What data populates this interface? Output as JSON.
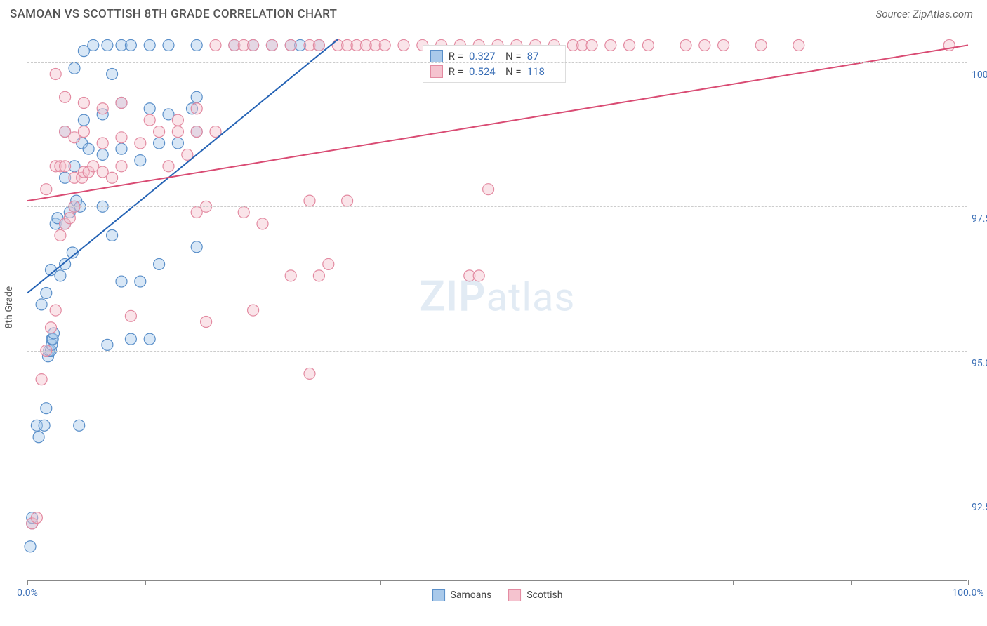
{
  "header": {
    "title": "SAMOAN VS SCOTTISH 8TH GRADE CORRELATION CHART",
    "source": "Source: ZipAtlas.com"
  },
  "chart": {
    "type": "scatter",
    "y_axis_title": "8th Grade",
    "background_color": "#ffffff",
    "grid_color": "#cccccc",
    "axis_color": "#888888",
    "label_color": "#3b6fb6",
    "x_range": [
      0,
      100
    ],
    "y_range": [
      91.0,
      100.5
    ],
    "x_ticks": [
      0,
      12.5,
      25,
      37.5,
      50,
      62.5,
      75,
      87.5,
      100
    ],
    "x_tick_labels": {
      "0": "0.0%",
      "100": "100.0%"
    },
    "y_gridlines": [
      92.5,
      95.0,
      97.5,
      100.0
    ],
    "y_tick_labels": {
      "92.5": "92.5%",
      "95.0": "95.0%",
      "97.5": "97.5%",
      "100.0": "100.0%"
    },
    "watermark": {
      "zip": "ZIP",
      "atlas": "atlas"
    },
    "marker_radius": 8,
    "marker_opacity": 0.45,
    "line_width": 2,
    "series": [
      {
        "name": "Samoans",
        "fill": "#a9c9ea",
        "stroke": "#5a8fc9",
        "line_color": "#2563b5",
        "R": "0.327",
        "N": "87",
        "trend": {
          "x1": 0,
          "y1": 96.0,
          "x2": 33,
          "y2": 100.4
        },
        "points": [
          [
            0.3,
            91.6
          ],
          [
            0.5,
            92.0
          ],
          [
            0.5,
            92.1
          ],
          [
            1.2,
            93.5
          ],
          [
            1.0,
            93.7
          ],
          [
            1.8,
            93.7
          ],
          [
            5.5,
            93.7
          ],
          [
            2.0,
            94.0
          ],
          [
            2.2,
            94.9
          ],
          [
            2.3,
            95.0
          ],
          [
            2.5,
            95.0
          ],
          [
            2.6,
            95.1
          ],
          [
            2.6,
            95.2
          ],
          [
            2.7,
            95.2
          ],
          [
            2.8,
            95.3
          ],
          [
            8.5,
            95.1
          ],
          [
            11.0,
            95.2
          ],
          [
            13.0,
            95.2
          ],
          [
            1.5,
            95.8
          ],
          [
            2.0,
            96.0
          ],
          [
            2.5,
            96.4
          ],
          [
            3.5,
            96.3
          ],
          [
            4.0,
            96.5
          ],
          [
            4.8,
            96.7
          ],
          [
            10.0,
            96.2
          ],
          [
            12.0,
            96.2
          ],
          [
            14.0,
            96.5
          ],
          [
            18.0,
            96.8
          ],
          [
            3.0,
            97.2
          ],
          [
            3.2,
            97.3
          ],
          [
            4.0,
            97.2
          ],
          [
            4.5,
            97.4
          ],
          [
            5.0,
            97.5
          ],
          [
            5.2,
            97.6
          ],
          [
            5.6,
            97.5
          ],
          [
            8.0,
            97.5
          ],
          [
            9.0,
            97.0
          ],
          [
            4.0,
            98.0
          ],
          [
            5.0,
            98.2
          ],
          [
            5.8,
            98.6
          ],
          [
            6.5,
            98.5
          ],
          [
            8.0,
            98.4
          ],
          [
            10.0,
            98.5
          ],
          [
            12.0,
            98.3
          ],
          [
            14.0,
            98.6
          ],
          [
            16.0,
            98.6
          ],
          [
            18.0,
            98.8
          ],
          [
            4.0,
            98.8
          ],
          [
            6.0,
            99.0
          ],
          [
            8.0,
            99.1
          ],
          [
            9.0,
            99.8
          ],
          [
            10.0,
            99.3
          ],
          [
            13.0,
            99.2
          ],
          [
            15.0,
            99.1
          ],
          [
            17.5,
            99.2
          ],
          [
            18.0,
            99.4
          ],
          [
            5.0,
            99.9
          ],
          [
            6.0,
            100.2
          ],
          [
            7.0,
            100.3
          ],
          [
            8.5,
            100.3
          ],
          [
            10.0,
            100.3
          ],
          [
            11.0,
            100.3
          ],
          [
            13.0,
            100.3
          ],
          [
            15.0,
            100.3
          ],
          [
            18.0,
            100.3
          ],
          [
            22.0,
            100.3
          ],
          [
            24.0,
            100.3
          ],
          [
            26.0,
            100.3
          ],
          [
            28.0,
            100.3
          ],
          [
            29.0,
            100.3
          ],
          [
            31.0,
            100.3
          ]
        ]
      },
      {
        "name": "Scottish",
        "fill": "#f5c3cf",
        "stroke": "#e38aa1",
        "line_color": "#d94b73",
        "R": "0.524",
        "N": "118",
        "trend": {
          "x1": 0,
          "y1": 97.6,
          "x2": 100,
          "y2": 100.3
        },
        "points": [
          [
            0.5,
            92.0
          ],
          [
            1.0,
            92.1
          ],
          [
            1.5,
            94.5
          ],
          [
            30.0,
            94.6
          ],
          [
            2.0,
            95.0
          ],
          [
            2.5,
            95.4
          ],
          [
            3.0,
            95.7
          ],
          [
            11.0,
            95.6
          ],
          [
            19.0,
            95.5
          ],
          [
            24.0,
            95.7
          ],
          [
            28.0,
            96.3
          ],
          [
            31.0,
            96.3
          ],
          [
            47.0,
            96.3
          ],
          [
            48.0,
            96.3
          ],
          [
            32.0,
            96.5
          ],
          [
            3.5,
            97.0
          ],
          [
            4.0,
            97.2
          ],
          [
            4.5,
            97.3
          ],
          [
            5.0,
            97.5
          ],
          [
            18.0,
            97.4
          ],
          [
            19.0,
            97.5
          ],
          [
            23.0,
            97.4
          ],
          [
            25.0,
            97.2
          ],
          [
            30.0,
            97.6
          ],
          [
            34.0,
            97.6
          ],
          [
            49.0,
            97.8
          ],
          [
            3.0,
            98.2
          ],
          [
            3.5,
            98.2
          ],
          [
            4.0,
            98.2
          ],
          [
            5.0,
            98.0
          ],
          [
            5.8,
            98.0
          ],
          [
            6.0,
            98.1
          ],
          [
            6.5,
            98.1
          ],
          [
            7.0,
            98.2
          ],
          [
            8.0,
            98.1
          ],
          [
            9.0,
            98.0
          ],
          [
            10.0,
            98.2
          ],
          [
            15.0,
            98.2
          ],
          [
            17.0,
            98.4
          ],
          [
            20.0,
            98.8
          ],
          [
            4.0,
            98.8
          ],
          [
            5.0,
            98.7
          ],
          [
            6.0,
            98.8
          ],
          [
            8.0,
            98.6
          ],
          [
            10.0,
            98.7
          ],
          [
            12.0,
            98.6
          ],
          [
            14.0,
            98.8
          ],
          [
            16.0,
            98.8
          ],
          [
            18.0,
            98.8
          ],
          [
            2.0,
            97.8
          ],
          [
            4.0,
            99.4
          ],
          [
            6.0,
            99.3
          ],
          [
            8.0,
            99.2
          ],
          [
            10.0,
            99.3
          ],
          [
            13.0,
            99.0
          ],
          [
            16.0,
            99.0
          ],
          [
            18.0,
            99.2
          ],
          [
            3.0,
            99.8
          ],
          [
            20.0,
            100.3
          ],
          [
            22.0,
            100.3
          ],
          [
            23.0,
            100.3
          ],
          [
            24.0,
            100.3
          ],
          [
            26.0,
            100.3
          ],
          [
            28.0,
            100.3
          ],
          [
            30.0,
            100.3
          ],
          [
            31.0,
            100.3
          ],
          [
            33.0,
            100.3
          ],
          [
            34.0,
            100.3
          ],
          [
            35.0,
            100.3
          ],
          [
            36.0,
            100.3
          ],
          [
            37.0,
            100.3
          ],
          [
            38.0,
            100.3
          ],
          [
            40.0,
            100.3
          ],
          [
            42.0,
            100.3
          ],
          [
            44.0,
            100.3
          ],
          [
            46.0,
            100.3
          ],
          [
            48.0,
            100.3
          ],
          [
            50.0,
            100.3
          ],
          [
            52.0,
            100.3
          ],
          [
            54.0,
            100.3
          ],
          [
            56.0,
            100.3
          ],
          [
            58.0,
            100.3
          ],
          [
            59.0,
            100.3
          ],
          [
            60.0,
            100.3
          ],
          [
            62.0,
            100.3
          ],
          [
            64.0,
            100.3
          ],
          [
            66.0,
            100.3
          ],
          [
            70.0,
            100.3
          ],
          [
            72.0,
            100.3
          ],
          [
            74.0,
            100.3
          ],
          [
            78.0,
            100.3
          ],
          [
            82.0,
            100.3
          ],
          [
            98.0,
            100.3
          ]
        ]
      }
    ],
    "legend_items": [
      {
        "label": "Samoans",
        "fill": "#a9c9ea",
        "stroke": "#5a8fc9"
      },
      {
        "label": "Scottish",
        "fill": "#f5c3cf",
        "stroke": "#e38aa1"
      }
    ],
    "stats_box": {
      "left_pct": 42,
      "top_pct": 2
    }
  }
}
